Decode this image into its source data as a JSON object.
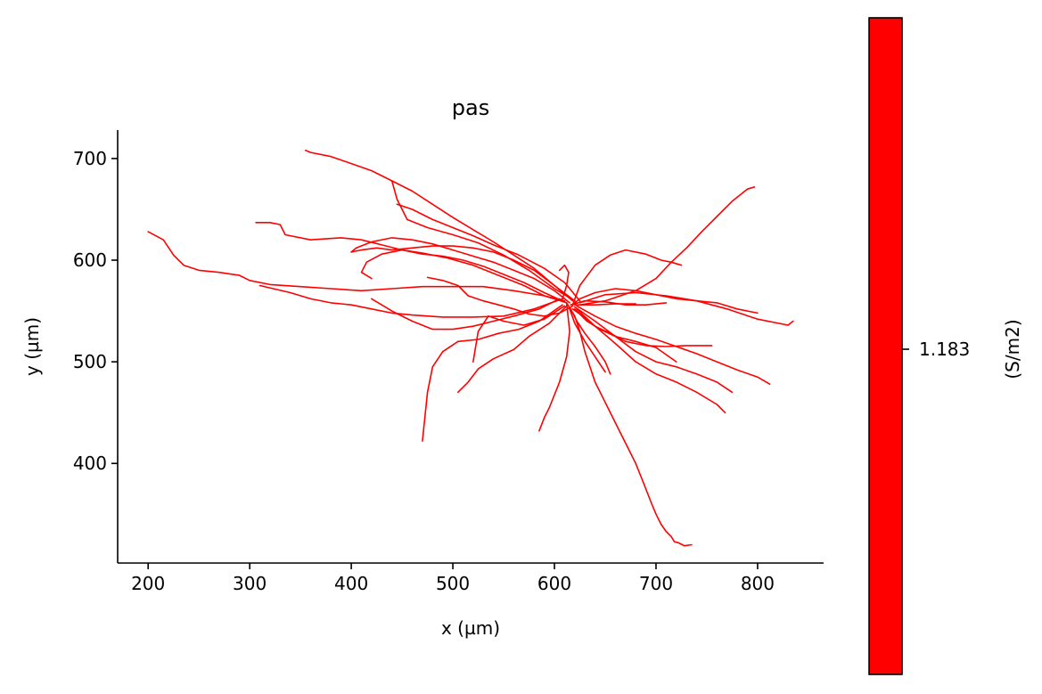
{
  "chart_data": {
    "type": "line",
    "title": "pas",
    "xlabel": "x (µm)",
    "ylabel": "y (µm)",
    "xlim": [
      170,
      865
    ],
    "ylim": [
      302,
      728
    ],
    "xticks": [
      200,
      300,
      400,
      500,
      600,
      700,
      800
    ],
    "yticks": [
      400,
      500,
      600,
      700
    ],
    "grid": false,
    "line_color": "#ff0000",
    "colorbar": {
      "color": "#ff0000",
      "tick": "1.183",
      "label": "(S/m2)"
    },
    "series": [
      {
        "x": [
          620,
          600,
          580,
          560,
          540,
          520,
          500,
          480,
          460,
          440,
          420,
          400,
          380,
          360,
          355
        ],
        "y": [
          560,
          575,
          592,
          605,
          618,
          630,
          642,
          655,
          668,
          678,
          688,
          695,
          702,
          706,
          708
        ]
      },
      {
        "x": [
          620,
          600,
          575,
          550,
          525,
          500,
          475,
          455,
          445,
          440
        ],
        "y": [
          560,
          572,
          590,
          605,
          617,
          625,
          632,
          640,
          660,
          678
        ]
      },
      {
        "x": [
          625,
          610,
          590,
          565,
          540,
          520,
          500,
          480,
          460,
          445
        ],
        "y": [
          560,
          578,
          592,
          605,
          615,
          624,
          632,
          640,
          650,
          655
        ]
      },
      {
        "x": [
          618,
          600,
          580,
          560,
          540,
          520,
          500,
          480,
          460,
          440,
          425,
          410,
          400
        ],
        "y": [
          560,
          575,
          590,
          600,
          608,
          612,
          614,
          614,
          612,
          610,
          612,
          610,
          608
        ]
      },
      {
        "x": [
          615,
          600,
          580,
          560,
          540,
          520,
          500,
          480,
          460,
          440,
          420,
          405,
          400
        ],
        "y": [
          558,
          570,
          582,
          590,
          598,
          604,
          610,
          616,
          620,
          622,
          618,
          612,
          608
        ]
      },
      {
        "x": [
          612,
          590,
          570,
          550,
          530,
          510,
          490,
          470,
          450,
          430,
          415,
          410,
          420
        ],
        "y": [
          558,
          568,
          578,
          586,
          594,
          600,
          604,
          606,
          610,
          606,
          598,
          588,
          582
        ]
      },
      {
        "x": [
          610,
          590,
          560,
          530,
          500,
          470,
          440,
          410,
          380,
          350,
          320,
          300,
          290,
          270,
          250,
          235,
          225,
          215,
          200
        ],
        "y": [
          560,
          565,
          570,
          574,
          574,
          574,
          572,
          570,
          572,
          574,
          576,
          580,
          585,
          588,
          590,
          595,
          605,
          620,
          628
        ]
      },
      {
        "x": [
          612,
          590,
          570,
          545,
          520,
          495,
          470,
          450,
          430,
          410,
          390,
          360,
          335,
          330,
          320,
          306
        ],
        "y": [
          558,
          565,
          575,
          585,
          595,
          602,
          607,
          610,
          615,
          620,
          622,
          620,
          625,
          635,
          637,
          637
        ]
      },
      {
        "x": [
          608,
          580,
          550,
          520,
          490,
          460,
          440,
          420,
          400,
          380,
          360,
          340,
          310
        ],
        "y": [
          562,
          552,
          545,
          544,
          544,
          546,
          548,
          552,
          556,
          558,
          562,
          568,
          575
        ]
      },
      {
        "x": [
          605,
          585,
          560,
          540,
          520,
          500,
          480,
          460,
          440,
          420
        ],
        "y": [
          562,
          552,
          545,
          540,
          535,
          532,
          532,
          540,
          550,
          562
        ]
      },
      {
        "x": [
          608,
          585,
          565,
          545,
          525,
          505,
          490,
          480,
          475,
          470
        ],
        "y": [
          556,
          540,
          532,
          528,
          522,
          520,
          510,
          495,
          470,
          422
        ]
      },
      {
        "x": [
          610,
          590,
          570,
          550,
          535,
          525,
          520
        ],
        "y": [
          555,
          542,
          536,
          540,
          545,
          530,
          500
        ]
      },
      {
        "x": [
          612,
          595,
          575,
          560,
          540,
          525,
          515,
          505
        ],
        "y": [
          555,
          538,
          525,
          512,
          503,
          493,
          480,
          470
        ]
      },
      {
        "x": [
          618,
          605,
          590,
          575,
          560,
          545,
          530,
          515,
          505,
          490,
          475
        ],
        "y": [
          555,
          548,
          545,
          547,
          552,
          556,
          560,
          565,
          575,
          580,
          583
        ]
      },
      {
        "x": [
          620,
          625,
          640,
          660,
          680,
          700,
          720,
          740,
          760,
          780,
          800
        ],
        "y": [
          558,
          562,
          568,
          572,
          570,
          566,
          562,
          560,
          558,
          552,
          548
        ]
      },
      {
        "x": [
          625,
          650,
          680,
          710,
          740,
          770,
          800,
          830,
          835
        ],
        "y": [
          558,
          566,
          568,
          565,
          560,
          552,
          542,
          536,
          540
        ]
      },
      {
        "x": [
          625,
          650,
          680,
          700,
          715,
          730,
          745,
          760,
          775,
          790,
          797
        ],
        "y": [
          556,
          560,
          570,
          582,
          598,
          612,
          628,
          643,
          658,
          670,
          672
        ]
      },
      {
        "x": [
          622,
          640,
          660,
          680,
          700,
          720,
          740,
          760,
          780,
          800,
          812
        ],
        "y": [
          555,
          545,
          535,
          528,
          522,
          515,
          508,
          500,
          492,
          485,
          478
        ]
      },
      {
        "x": [
          620,
          640,
          660,
          680,
          700,
          720,
          740,
          760,
          775
        ],
        "y": [
          554,
          540,
          525,
          510,
          500,
          495,
          488,
          480,
          470
        ]
      },
      {
        "x": [
          622,
          640,
          660,
          680,
          700,
          720,
          740,
          760,
          768
        ],
        "y": [
          552,
          535,
          518,
          500,
          488,
          480,
          470,
          458,
          450
        ]
      },
      {
        "x": [
          620,
          632,
          645,
          660,
          680,
          700,
          720
        ],
        "y": [
          552,
          540,
          532,
          525,
          520,
          514,
          500
        ]
      },
      {
        "x": [
          618,
          628,
          640,
          655,
          670,
          690,
          710,
          730,
          755
        ],
        "y": [
          552,
          545,
          535,
          528,
          520,
          516,
          515,
          516,
          516
        ]
      },
      {
        "x": [
          616,
          622,
          630,
          640,
          650,
          655
        ],
        "y": [
          552,
          540,
          528,
          515,
          500,
          488
        ]
      },
      {
        "x": [
          615,
          620,
          630,
          640,
          650
        ],
        "y": [
          552,
          538,
          520,
          505,
          490
        ]
      },
      {
        "x": [
          618,
          625,
          640,
          655,
          670,
          690,
          705,
          715,
          725
        ],
        "y": [
          556,
          575,
          595,
          605,
          610,
          606,
          600,
          598,
          595
        ]
      },
      {
        "x": [
          616,
          630,
          650,
          670,
          690,
          710
        ],
        "y": [
          556,
          560,
          559,
          556,
          556,
          558
        ]
      },
      {
        "x": [
          612,
          620,
          625,
          630,
          640,
          650,
          660,
          670,
          680,
          688,
          695,
          700,
          705,
          710,
          715,
          718,
          722,
          728,
          735
        ],
        "y": [
          558,
          545,
          530,
          510,
          480,
          460,
          440,
          420,
          400,
          380,
          362,
          350,
          340,
          333,
          328,
          323,
          322,
          319,
          320
        ]
      },
      {
        "x": [
          612,
          615,
          612,
          605,
          595,
          590,
          585
        ],
        "y": [
          558,
          530,
          505,
          480,
          455,
          445,
          432
        ]
      },
      {
        "x": [
          608,
          612,
          614,
          610,
          605
        ],
        "y": [
          562,
          575,
          588,
          595,
          590
        ]
      },
      {
        "x": [
          620,
          640,
          660,
          680
        ],
        "y": [
          556,
          556,
          557,
          557
        ]
      }
    ]
  }
}
